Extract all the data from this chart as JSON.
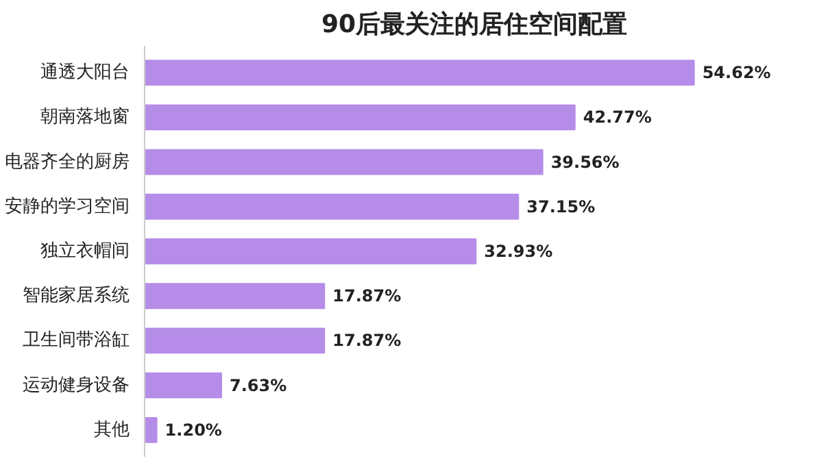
{
  "chart_data": {
    "type": "bar",
    "orientation": "horizontal",
    "title": "90后最关注的居住空间配置",
    "categories": [
      "通透大阳台",
      "朝南落地窗",
      "电器齐全的厨房",
      "安静的学习空间",
      "独立衣帽间",
      "智能家居系统",
      "卫生间带浴缸",
      "运动健身设备",
      "其他"
    ],
    "values": [
      54.62,
      42.77,
      39.56,
      37.15,
      32.93,
      17.87,
      17.87,
      7.63,
      1.2
    ],
    "value_labels": [
      "54.62%",
      "42.77%",
      "39.56%",
      "37.15%",
      "32.93%",
      "17.87%",
      "17.87%",
      "7.63%",
      "1.20%"
    ],
    "color": "#b58de8",
    "grid": false,
    "tick_labels": "y"
  }
}
